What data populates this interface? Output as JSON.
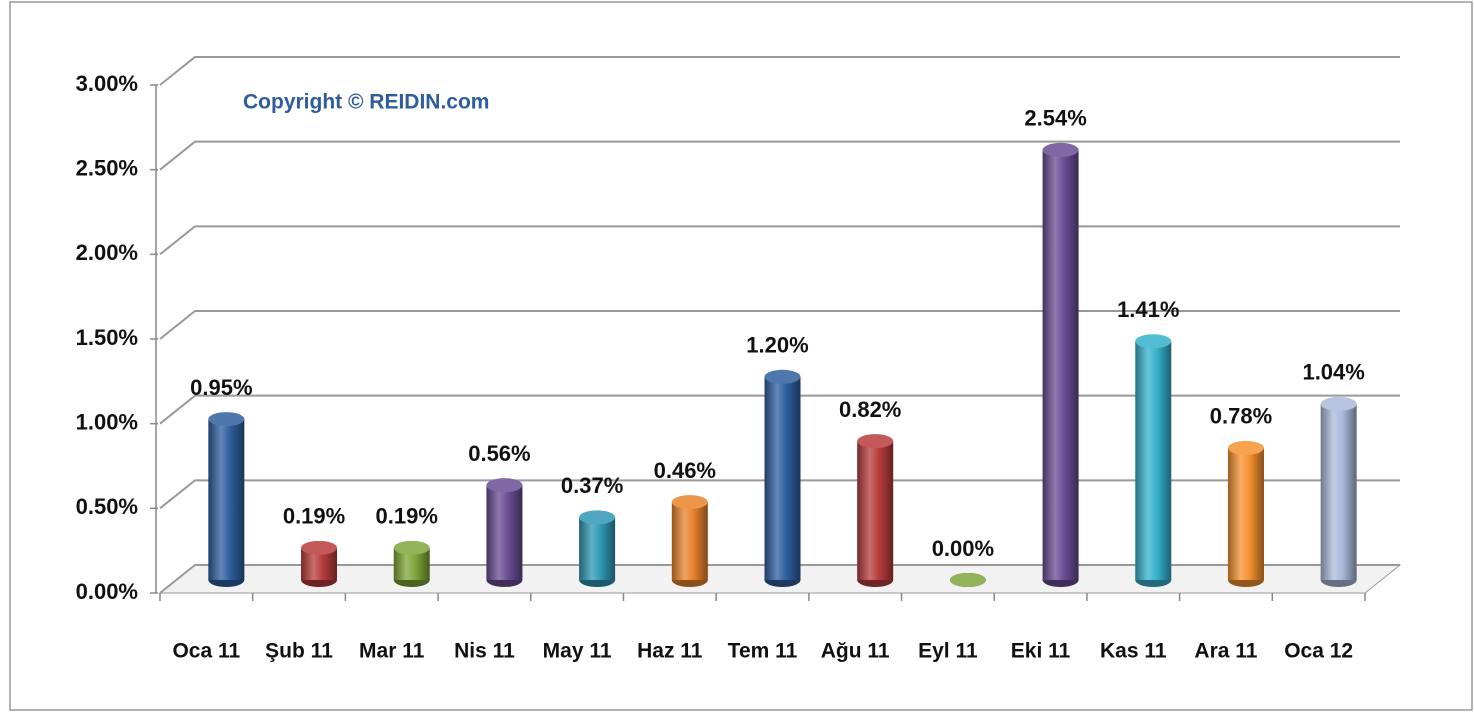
{
  "chart_data": {
    "type": "bar3d",
    "annotation": "Copyright © REIDIN.com",
    "categories": [
      "Oca 11",
      "Şub 11",
      "Mar 11",
      "Nis 11",
      "May 11",
      "Haz 11",
      "Tem 11",
      "Ağu 11",
      "Eyl 11",
      "Eki 11",
      "Kas 11",
      "Ara 11",
      "Oca 12"
    ],
    "values": [
      0.95,
      0.19,
      0.19,
      0.56,
      0.37,
      0.46,
      1.2,
      0.82,
      0.0,
      2.54,
      1.41,
      0.78,
      1.04
    ],
    "value_labels": [
      "0.95%",
      "0.19%",
      "0.19%",
      "0.56%",
      "0.37%",
      "0.46%",
      "1.20%",
      "0.82%",
      "0.00%",
      "2.54%",
      "1.41%",
      "0.78%",
      "1.04%"
    ],
    "colors": [
      "#2f5f9f",
      "#b83c3c",
      "#7fa53a",
      "#6a4d94",
      "#2f98b2",
      "#e8832b",
      "#2f5f9f",
      "#b83c3c",
      "#7fa53a",
      "#6a4d94",
      "#36b1cc",
      "#f5912f",
      "#a9badb"
    ],
    "ylim": [
      0,
      3
    ],
    "yticks": [
      {
        "value": 0,
        "label": "0.00%"
      },
      {
        "value": 0.5,
        "label": "0.50%"
      },
      {
        "value": 1,
        "label": "1.00%"
      },
      {
        "value": 1.5,
        "label": "1.50%"
      },
      {
        "value": 2,
        "label": "2.00%"
      },
      {
        "value": 2.5,
        "label": "2.50%"
      },
      {
        "value": 3,
        "label": "3.00%"
      }
    ],
    "grid": true
  }
}
